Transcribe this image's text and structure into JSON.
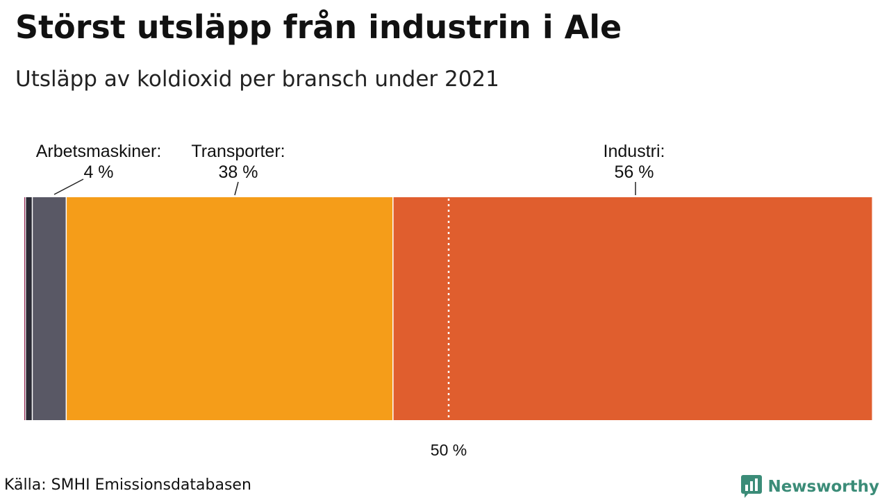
{
  "header": {
    "title": "Störst utsläpp från industrin i Ale",
    "subtitle": "Utsläpp av koldioxid per bransch under 2021"
  },
  "footer": {
    "source": "Källa: SMHI Emissionsdatabasen",
    "brand": "Newsworthy",
    "brand_icon": "bar-chart-speech-bubble-icon"
  },
  "colors": {
    "industri": "#E05E2E",
    "transporter": "#F59D19",
    "arbetsmaskiner": "#595865",
    "dark": "#2A2A35",
    "small": "#8E1E4C",
    "brand": "#3B8C78"
  },
  "chart_data": {
    "type": "bar",
    "orientation": "horizontal-stacked",
    "xlim": [
      0,
      100
    ],
    "unit": "%",
    "segments": [
      {
        "name": "",
        "value": 0.2,
        "color": "#8E1E4C",
        "labeled": false
      },
      {
        "name": "",
        "value": 0.8,
        "color": "#2A2A35",
        "labeled": false
      },
      {
        "name": "Arbetsmaskiner:",
        "value": 4,
        "display": "4 %",
        "color": "#595865",
        "labeled": true
      },
      {
        "name": "Transporter:",
        "value": 38.5,
        "display": "38 %",
        "color": "#F59D19",
        "labeled": true
      },
      {
        "name": "Industri:",
        "value": 56.5,
        "display": "56 %",
        "color": "#E05E2E",
        "labeled": true
      }
    ],
    "reference_line": {
      "value": 50,
      "label": "50 %",
      "style": "dotted"
    },
    "legend": "none",
    "grid": false
  }
}
